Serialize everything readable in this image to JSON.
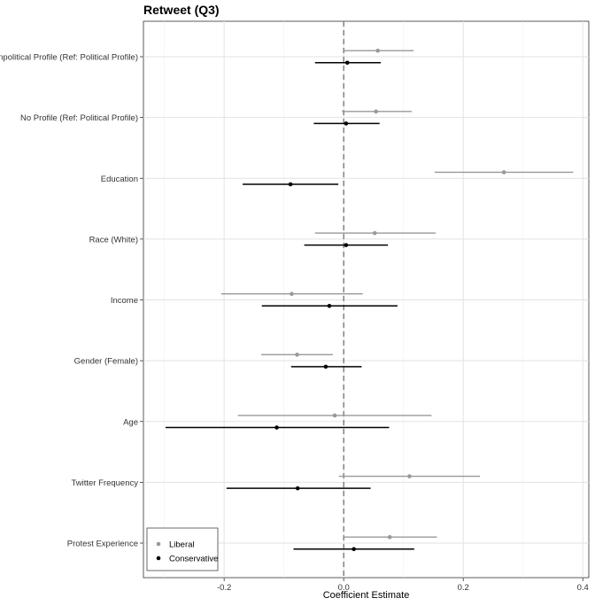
{
  "chart_data": {
    "type": "coefficient-plot",
    "title": "Retweet (Q3)",
    "xlabel": "Coefficient Estimate",
    "ylabel": "",
    "xlim": [
      -0.335,
      0.41
    ],
    "xticks": [
      -0.2,
      0.0,
      0.2,
      0.4
    ],
    "xtick_labels": [
      "-0.2",
      "0.0",
      "0.2",
      "0.4"
    ],
    "reference_line": 0,
    "grid": true,
    "legend_position": "bottom-left",
    "categories": [
      "Nonpolitical Profile (Ref: Political Profile)",
      "No Profile (Ref: Political Profile)",
      "Education",
      "Race (White)",
      "Income",
      "Gender (Female)",
      "Age",
      "Twitter Frequency",
      "Protest Experience"
    ],
    "series": [
      {
        "name": "Liberal",
        "color": "#999999",
        "estimates": [
          0.057,
          0.054,
          0.268,
          0.052,
          -0.087,
          -0.078,
          -0.015,
          0.11,
          0.077
        ],
        "lower": [
          0.0,
          -0.003,
          0.152,
          -0.048,
          -0.205,
          -0.138,
          -0.177,
          -0.008,
          0.0
        ],
        "upper": [
          0.117,
          0.114,
          0.384,
          0.154,
          0.032,
          -0.018,
          0.147,
          0.228,
          0.156
        ]
      },
      {
        "name": "Conservative",
        "color": "#000000",
        "estimates": [
          0.006,
          0.004,
          -0.089,
          0.004,
          -0.024,
          -0.03,
          -0.112,
          -0.077,
          0.017
        ],
        "lower": [
          -0.048,
          -0.05,
          -0.169,
          -0.066,
          -0.137,
          -0.088,
          -0.298,
          -0.196,
          -0.084
        ],
        "upper": [
          0.062,
          0.06,
          -0.009,
          0.074,
          0.09,
          0.03,
          0.076,
          0.045,
          0.118
        ]
      }
    ]
  }
}
